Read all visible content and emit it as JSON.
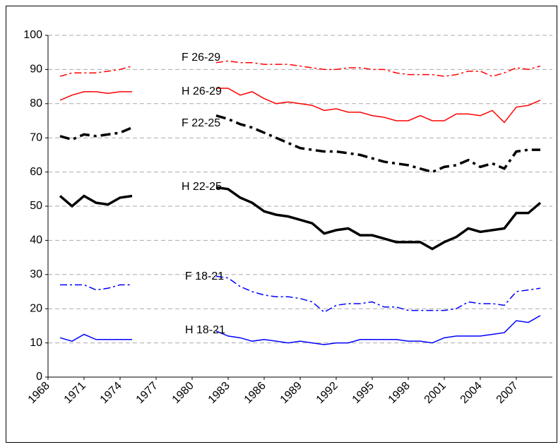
{
  "chart_data": {
    "type": "line",
    "x": [
      1969,
      1970,
      1971,
      1972,
      1973,
      1974,
      1975,
      1976,
      1977,
      1978,
      1979,
      1980,
      1981,
      1982,
      1983,
      1984,
      1985,
      1986,
      1987,
      1988,
      1989,
      1990,
      1991,
      1992,
      1993,
      1994,
      1995,
      1996,
      1997,
      1998,
      1999,
      2000,
      2001,
      2002,
      2003,
      2004,
      2005,
      2006,
      2007,
      2008,
      2009
    ],
    "series": [
      {
        "name": "F 26-29",
        "color": "#ff0000",
        "dash": "dashdot",
        "width": 1.5,
        "values": [
          88,
          89,
          89,
          89,
          89.5,
          90,
          91,
          null,
          null,
          null,
          null,
          null,
          null,
          92,
          92.5,
          92,
          92,
          91.5,
          91.5,
          91.5,
          91,
          90.5,
          90,
          90,
          90.5,
          90.5,
          90,
          90,
          89,
          88.5,
          88.5,
          88.5,
          88,
          88.5,
          89.5,
          89.5,
          88,
          89,
          90.5,
          90,
          91
        ]
      },
      {
        "name": "H 26-29",
        "color": "#ff0000",
        "dash": "solid",
        "width": 1.5,
        "values": [
          81,
          82.5,
          83.5,
          83.5,
          83,
          83.5,
          83.5,
          null,
          null,
          null,
          null,
          null,
          null,
          84.5,
          84.5,
          82.5,
          83.5,
          81.5,
          80,
          80.5,
          80,
          79.5,
          78,
          78.5,
          77.5,
          77.5,
          76.5,
          76,
          75,
          75,
          76.5,
          75,
          75,
          77,
          77,
          76.5,
          78,
          74.5,
          79,
          79.5,
          81
        ]
      },
      {
        "name": "F 22-25",
        "color": "#000000",
        "dash": "dashdot",
        "width": 3.5,
        "values": [
          70.5,
          69.5,
          71,
          70.5,
          71,
          71.5,
          73,
          null,
          null,
          null,
          null,
          null,
          null,
          76.5,
          75.5,
          74,
          73,
          71.5,
          70,
          68.5,
          67,
          66.5,
          66,
          66,
          65.5,
          65,
          64,
          63,
          62.5,
          62,
          61,
          60,
          61.5,
          62,
          63.5,
          61.5,
          62.5,
          61,
          66,
          66.5,
          66.5
        ]
      },
      {
        "name": "H 22-25",
        "color": "#000000",
        "dash": "solid",
        "width": 3.5,
        "values": [
          53,
          50,
          53,
          51,
          50.5,
          52.5,
          53,
          null,
          null,
          null,
          null,
          null,
          null,
          55.5,
          55,
          52.5,
          51,
          48.5,
          47.5,
          47,
          46,
          45,
          42,
          43,
          43.5,
          41.5,
          41.5,
          40.5,
          39.5,
          39.5,
          39.5,
          37.5,
          39.5,
          41,
          43.5,
          42.5,
          43,
          43.5,
          48,
          48,
          51
        ]
      },
      {
        "name": "F 18-21",
        "color": "#0000ff",
        "dash": "dashdot",
        "width": 1.5,
        "values": [
          27,
          27,
          27,
          25.5,
          26,
          27,
          27,
          null,
          null,
          null,
          null,
          null,
          null,
          29.5,
          29,
          26.5,
          25,
          24,
          23.5,
          23.5,
          23,
          22,
          19,
          21,
          21.5,
          21.5,
          22,
          20.5,
          20.5,
          19.5,
          19.5,
          19.5,
          19.5,
          20,
          22,
          21.5,
          21.5,
          21,
          25,
          25.5,
          26
        ]
      },
      {
        "name": "H 18-21",
        "color": "#0000ff",
        "dash": "solid",
        "width": 1.5,
        "values": [
          11.5,
          10.5,
          12.5,
          11,
          11,
          11,
          11,
          null,
          null,
          null,
          null,
          null,
          null,
          13.5,
          12,
          11.5,
          10.5,
          11,
          10.5,
          10,
          10.5,
          10,
          9.5,
          10,
          10,
          11,
          11,
          11,
          11,
          10.5,
          10.5,
          10,
          11.5,
          12,
          12,
          12,
          12.5,
          13,
          16.5,
          16,
          18
        ]
      }
    ],
    "xlim": [
      1968,
      2010
    ],
    "xticks": [
      1968,
      1971,
      1974,
      1977,
      1980,
      1983,
      1986,
      1989,
      1992,
      1995,
      1998,
      2001,
      2004,
      2007
    ],
    "ylim": [
      0,
      100
    ],
    "yticks": [
      0,
      10,
      20,
      30,
      40,
      50,
      60,
      70,
      80,
      90,
      100
    ],
    "grid": true
  }
}
